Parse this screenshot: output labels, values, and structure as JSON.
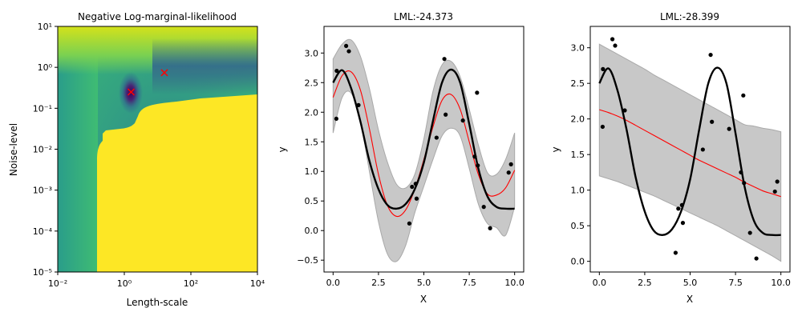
{
  "colors": {
    "band": "#c8c8c8",
    "prediction": "#ff0000",
    "true_function": "#000000",
    "points": "#000000",
    "marker": "#ff0000"
  },
  "chart_data": [
    {
      "type": "heatmap",
      "title": "Negative Log-marginal-likelihood",
      "xlabel": "Length-scale",
      "ylabel": "Noise-level",
      "xscale": "log",
      "yscale": "log",
      "xlim": [
        0.01,
        10000
      ],
      "ylim": [
        1e-05,
        10
      ],
      "xticks": [
        {
          "value": 0.01,
          "label": "10⁻²"
        },
        {
          "value": 1,
          "label": "10⁰"
        },
        {
          "value": 100,
          "label": "10²"
        },
        {
          "value": 10000,
          "label": "10⁴"
        }
      ],
      "yticks": [
        {
          "value": 1e-05,
          "label": "10⁻⁵"
        },
        {
          "value": 0.0001,
          "label": "10⁻⁴"
        },
        {
          "value": 0.001,
          "label": "10⁻³"
        },
        {
          "value": 0.01,
          "label": "10⁻²"
        },
        {
          "value": 0.1,
          "label": "10⁻¹"
        },
        {
          "value": 1,
          "label": "10⁰"
        },
        {
          "value": 10,
          "label": "10¹"
        }
      ],
      "colormap": "viridis",
      "markers": [
        {
          "x": 1.6,
          "y": 0.25,
          "symbol": "x"
        },
        {
          "x": 16,
          "y": 0.74,
          "symbol": "x"
        }
      ]
    },
    {
      "type": "line",
      "title": "LML:-24.373",
      "xlabel": "X",
      "ylabel": "y",
      "xlim": [
        -0.5,
        10.5
      ],
      "ylim": [
        -0.7,
        3.45
      ],
      "xticks": [
        0.0,
        2.5,
        5.0,
        7.5,
        10.0
      ],
      "xtick_labels": [
        "0.0",
        "2.5",
        "5.0",
        "7.5",
        "10.0"
      ],
      "yticks": [
        -0.5,
        0.0,
        0.5,
        1.0,
        1.5,
        2.0,
        2.5,
        3.0
      ],
      "ytick_labels": [
        "−0.5",
        "0.0",
        "0.5",
        "1.0",
        "1.5",
        "2.0",
        "2.5",
        "3.0"
      ],
      "x": [
        0.0,
        0.5,
        1.0,
        1.5,
        2.0,
        2.5,
        3.0,
        3.5,
        4.0,
        4.5,
        5.0,
        5.5,
        6.0,
        6.5,
        7.0,
        7.5,
        8.0,
        8.5,
        9.0,
        9.5,
        10.0
      ],
      "series": [
        {
          "role": "band_upper",
          "values": [
            2.9,
            3.15,
            3.22,
            2.95,
            2.4,
            1.7,
            1.15,
            0.78,
            0.72,
            0.95,
            1.55,
            2.35,
            2.8,
            2.86,
            2.6,
            2.05,
            1.45,
            0.98,
            0.95,
            1.2,
            1.65
          ]
        },
        {
          "role": "band_lower",
          "values": [
            1.65,
            2.25,
            2.32,
            1.85,
            1.0,
            0.15,
            -0.4,
            -0.52,
            -0.25,
            0.3,
            0.75,
            1.2,
            1.6,
            1.73,
            1.6,
            1.05,
            0.45,
            0.12,
            0.05,
            -0.08,
            0.4
          ]
        },
        {
          "role": "prediction",
          "values": [
            2.25,
            2.62,
            2.68,
            2.38,
            1.72,
            0.95,
            0.42,
            0.24,
            0.35,
            0.7,
            1.2,
            1.75,
            2.2,
            2.3,
            2.05,
            1.5,
            0.95,
            0.62,
            0.6,
            0.72,
            1.02
          ]
        },
        {
          "role": "true_function",
          "values": [
            2.5,
            2.71,
            2.4,
            1.85,
            1.18,
            0.7,
            0.43,
            0.37,
            0.45,
            0.7,
            1.15,
            1.85,
            2.5,
            2.72,
            2.5,
            1.8,
            1.05,
            0.58,
            0.4,
            0.37,
            0.37
          ]
        }
      ],
      "points": [
        [
          0.18,
          1.89
        ],
        [
          0.2,
          2.7
        ],
        [
          0.72,
          3.12
        ],
        [
          0.87,
          3.03
        ],
        [
          1.4,
          2.12
        ],
        [
          4.2,
          0.12
        ],
        [
          4.35,
          0.74
        ],
        [
          4.55,
          0.79
        ],
        [
          4.6,
          0.54
        ],
        [
          5.7,
          1.57
        ],
        [
          6.13,
          2.9
        ],
        [
          6.2,
          1.96
        ],
        [
          7.15,
          1.86
        ],
        [
          7.8,
          1.25
        ],
        [
          7.93,
          2.33
        ],
        [
          7.97,
          1.1
        ],
        [
          8.3,
          0.4
        ],
        [
          8.65,
          0.04
        ],
        [
          9.67,
          0.98
        ],
        [
          9.8,
          1.12
        ]
      ]
    },
    {
      "type": "line",
      "title": "LML:-28.399",
      "xlabel": "X",
      "ylabel": "y",
      "xlim": [
        -0.5,
        10.5
      ],
      "ylim": [
        -0.15,
        3.3
      ],
      "xticks": [
        0.0,
        2.5,
        5.0,
        7.5,
        10.0
      ],
      "xtick_labels": [
        "0.0",
        "2.5",
        "5.0",
        "7.5",
        "10.0"
      ],
      "yticks": [
        0.0,
        0.5,
        1.0,
        1.5,
        2.0,
        2.5,
        3.0
      ],
      "ytick_labels": [
        "0.0",
        "0.5",
        "1.0",
        "1.5",
        "2.0",
        "2.5",
        "3.0"
      ],
      "x": [
        0.0,
        0.5,
        1.0,
        1.5,
        2.0,
        2.5,
        3.0,
        3.5,
        4.0,
        4.5,
        5.0,
        5.5,
        6.0,
        6.5,
        7.0,
        7.5,
        8.0,
        8.5,
        9.0,
        9.5,
        10.0
      ],
      "series": [
        {
          "role": "band_upper",
          "values": [
            3.05,
            2.98,
            2.91,
            2.84,
            2.77,
            2.7,
            2.62,
            2.55,
            2.48,
            2.41,
            2.34,
            2.27,
            2.2,
            2.13,
            2.06,
            1.99,
            1.92,
            1.9,
            1.87,
            1.85,
            1.82
          ]
        },
        {
          "role": "band_lower",
          "values": [
            1.2,
            1.16,
            1.12,
            1.07,
            1.02,
            0.97,
            0.92,
            0.86,
            0.8,
            0.74,
            0.68,
            0.62,
            0.56,
            0.5,
            0.43,
            0.36,
            0.29,
            0.22,
            0.15,
            0.08,
            0.0
          ]
        },
        {
          "role": "prediction",
          "values": [
            2.13,
            2.09,
            2.04,
            1.98,
            1.91,
            1.84,
            1.77,
            1.7,
            1.63,
            1.56,
            1.49,
            1.42,
            1.36,
            1.3,
            1.24,
            1.18,
            1.11,
            1.05,
            0.99,
            0.95,
            0.91
          ]
        },
        {
          "role": "true_function",
          "values": [
            2.5,
            2.71,
            2.4,
            1.85,
            1.18,
            0.7,
            0.43,
            0.37,
            0.45,
            0.7,
            1.15,
            1.85,
            2.5,
            2.72,
            2.5,
            1.8,
            1.05,
            0.58,
            0.4,
            0.37,
            0.37
          ]
        }
      ],
      "points": [
        [
          0.18,
          1.89
        ],
        [
          0.2,
          2.7
        ],
        [
          0.72,
          3.12
        ],
        [
          0.87,
          3.03
        ],
        [
          1.4,
          2.12
        ],
        [
          4.2,
          0.12
        ],
        [
          4.35,
          0.74
        ],
        [
          4.55,
          0.79
        ],
        [
          4.6,
          0.54
        ],
        [
          5.7,
          1.57
        ],
        [
          6.13,
          2.9
        ],
        [
          6.2,
          1.96
        ],
        [
          7.15,
          1.86
        ],
        [
          7.8,
          1.25
        ],
        [
          7.93,
          2.33
        ],
        [
          7.97,
          1.1
        ],
        [
          8.3,
          0.4
        ],
        [
          8.65,
          0.04
        ],
        [
          9.67,
          0.98
        ],
        [
          9.8,
          1.12
        ]
      ]
    }
  ]
}
